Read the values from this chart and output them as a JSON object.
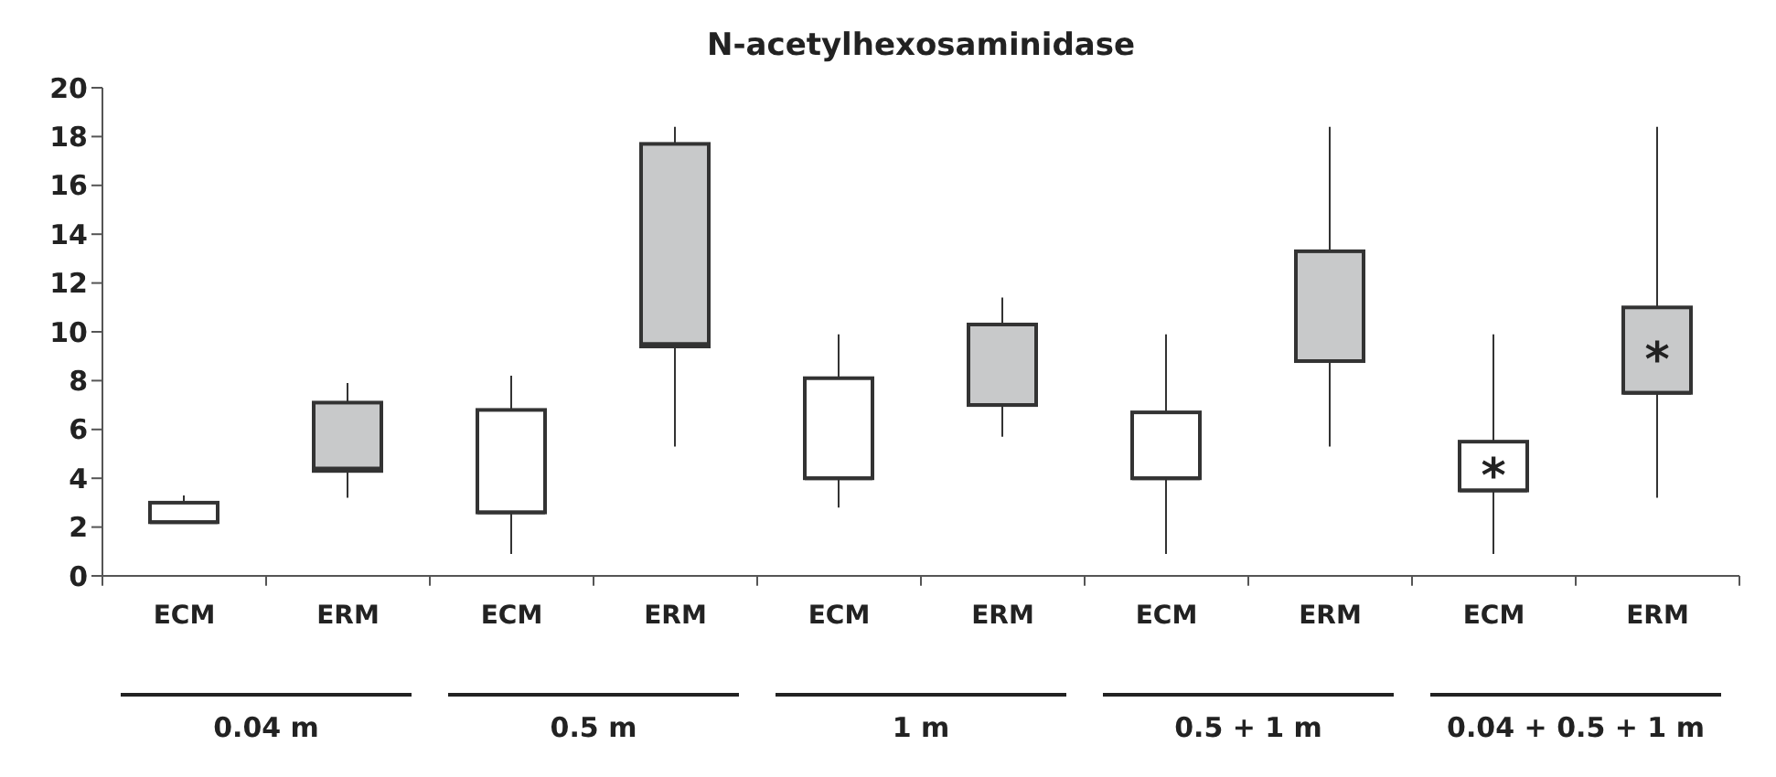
{
  "chart_data": {
    "type": "box",
    "title": "N-acetylhexosaminidase",
    "categories": [
      "ECM",
      "ERM",
      "ECM",
      "ERM",
      "ECM",
      "ERM",
      "ECM",
      "ERM",
      "ECM",
      "ERM"
    ],
    "boxes": [
      {
        "low": 2.2,
        "q1": 2.2,
        "median": 2.2,
        "q3": 3.0,
        "high": 3.3
      },
      {
        "low": 3.2,
        "q1": 4.3,
        "median": 4.4,
        "q3": 7.1,
        "high": 7.9
      },
      {
        "low": 0.9,
        "q1": 2.6,
        "median": 2.6,
        "q3": 6.8,
        "high": 8.2
      },
      {
        "low": 5.3,
        "q1": 9.4,
        "median": 9.5,
        "q3": 17.7,
        "high": 18.4
      },
      {
        "low": 2.8,
        "q1": 4.0,
        "median": 4.0,
        "q3": 8.1,
        "high": 9.9
      },
      {
        "low": 5.7,
        "q1": 7.0,
        "median": 7.0,
        "q3": 10.3,
        "high": 11.4
      },
      {
        "low": 0.9,
        "q1": 4.0,
        "median": 4.0,
        "q3": 6.7,
        "high": 9.9
      },
      {
        "low": 5.3,
        "q1": 8.8,
        "median": 8.8,
        "q3": 13.3,
        "high": 18.4
      },
      {
        "low": 0.9,
        "q1": 3.5,
        "median": 3.5,
        "q3": 5.5,
        "high": 9.9
      },
      {
        "low": 3.2,
        "q1": 7.5,
        "median": 7.5,
        "q3": 11.0,
        "high": 18.4
      }
    ],
    "colors": [
      "#ffffff",
      "#c8c9ca",
      "#ffffff",
      "#c8c9ca",
      "#ffffff",
      "#c8c9ca",
      "#ffffff",
      "#c8c9ca",
      "#ffffff",
      "#c8c9ca"
    ],
    "ylim": [
      0,
      20
    ],
    "yticks": [
      0,
      2,
      4,
      6,
      8,
      10,
      12,
      14,
      16,
      18,
      20
    ],
    "annotations": [
      "0.04 m",
      "0.5 m",
      "1 m",
      "0.5 + 1 m",
      "0.04 + 0.5 + 1 m",
      "*",
      "*"
    ]
  }
}
